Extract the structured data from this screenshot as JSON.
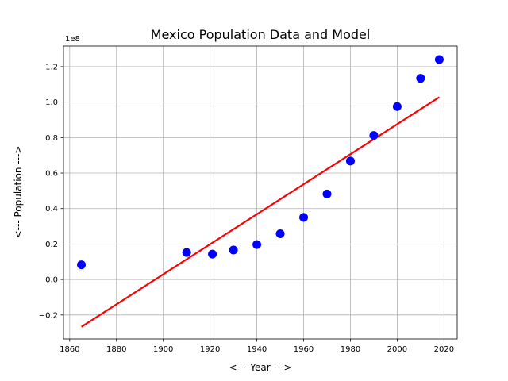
{
  "chart_data": {
    "type": "scatter",
    "title": "Mexico Population Data and Model",
    "xlabel": "<--- Year --->",
    "ylabel": "<--- Population --->",
    "y_offset_label": "1e8",
    "xlim": [
      1857.35,
      2025.65
    ],
    "ylim": [
      -0.335,
      1.316
    ],
    "x_ticks": [
      1860,
      1880,
      1900,
      1920,
      1940,
      1960,
      1980,
      2000,
      2020
    ],
    "x_tick_labels": [
      "1860",
      "1880",
      "1900",
      "1920",
      "1940",
      "1960",
      "1980",
      "2000",
      "2020"
    ],
    "y_ticks": [
      -0.2,
      0.0,
      0.2,
      0.4,
      0.6,
      0.8,
      1.0,
      1.2
    ],
    "y_tick_labels": [
      "−0.2",
      "0.0",
      "0.2",
      "0.4",
      "0.6",
      "0.8",
      "1.0",
      "1.2"
    ],
    "grid": true,
    "series": [
      {
        "type": "scatter",
        "color": "#0000ff",
        "x": [
          1865,
          1910,
          1921,
          1930,
          1940,
          1950,
          1960,
          1970,
          1980,
          1990,
          2000,
          2010,
          2018
        ],
        "y": [
          0.083,
          0.152,
          0.143,
          0.166,
          0.197,
          0.258,
          0.35,
          0.482,
          0.668,
          0.812,
          0.975,
          1.134,
          1.24
        ]
      },
      {
        "type": "line",
        "color": "#ff0000",
        "x": [
          1865,
          2018
        ],
        "y": [
          -0.267,
          1.028
        ]
      }
    ]
  }
}
